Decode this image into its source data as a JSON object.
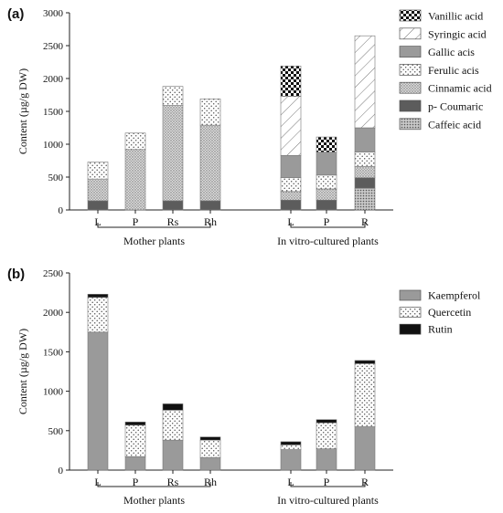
{
  "chart_data": [
    {
      "panel_label": "(a)",
      "type": "bar",
      "stacked": true,
      "ylabel": "Content (µg/g DW)",
      "ylim": [
        0,
        3000
      ],
      "yticks": [
        0,
        500,
        1000,
        1500,
        2000,
        2500,
        3000
      ],
      "groups": [
        {
          "label": "Mother plants",
          "categories": [
            "L",
            "P",
            "Rs",
            "Rh"
          ]
        },
        {
          "label": "In vitro-cultured plants",
          "categories": [
            "L",
            "P",
            "R"
          ]
        }
      ],
      "legend_position": "right",
      "legend_order": [
        "Vanillic acid",
        "Syringic acid",
        "Gallic acis",
        "Ferulic acis",
        "Cinnamic acid",
        "p- Coumaric",
        "Caffeic acid"
      ],
      "series": [
        {
          "name": "Caffeic acid",
          "fill": "dots-fine",
          "values": [
            0,
            0,
            0,
            0,
            0,
            0,
            330
          ]
        },
        {
          "name": "p- Coumaric",
          "fill": "solid-dark",
          "values": [
            140,
            0,
            140,
            140,
            150,
            150,
            160
          ]
        },
        {
          "name": "Cinnamic acid",
          "fill": "dots-dense",
          "values": [
            330,
            920,
            1450,
            1150,
            130,
            170,
            170
          ]
        },
        {
          "name": "Ferulic acis",
          "fill": "dots-sparse",
          "values": [
            260,
            250,
            290,
            400,
            210,
            210,
            220
          ]
        },
        {
          "name": "Gallic acis",
          "fill": "solid-gray",
          "values": [
            0,
            0,
            0,
            0,
            340,
            350,
            370
          ]
        },
        {
          "name": "Syringic acid",
          "fill": "diagonal",
          "values": [
            0,
            0,
            0,
            0,
            900,
            0,
            1400
          ]
        },
        {
          "name": "Vanillic acid",
          "fill": "checker",
          "values": [
            0,
            0,
            0,
            0,
            460,
            230,
            0
          ]
        }
      ]
    },
    {
      "panel_label": "(b)",
      "type": "bar",
      "stacked": true,
      "ylabel": "Content (µg/g DW)",
      "ylim": [
        0,
        2500
      ],
      "yticks": [
        0,
        500,
        1000,
        1500,
        2000,
        2500
      ],
      "groups": [
        {
          "label": "Mother plants",
          "categories": [
            "L",
            "P",
            "Rs",
            "Rh"
          ]
        },
        {
          "label": "In vitro-cultured plants",
          "categories": [
            "L",
            "P",
            "R"
          ]
        }
      ],
      "legend_position": "right",
      "legend_order": [
        "Kaempferol",
        "Quercetin",
        "Rutin"
      ],
      "series": [
        {
          "name": "Kaempferol",
          "fill": "solid-gray",
          "values": [
            1750,
            170,
            380,
            160,
            260,
            270,
            550
          ]
        },
        {
          "name": "Quercetin",
          "fill": "dots-sparse",
          "values": [
            440,
            400,
            380,
            220,
            60,
            330,
            800
          ]
        },
        {
          "name": "Rutin",
          "fill": "solid-black",
          "values": [
            40,
            40,
            80,
            40,
            40,
            40,
            40
          ]
        }
      ]
    }
  ]
}
